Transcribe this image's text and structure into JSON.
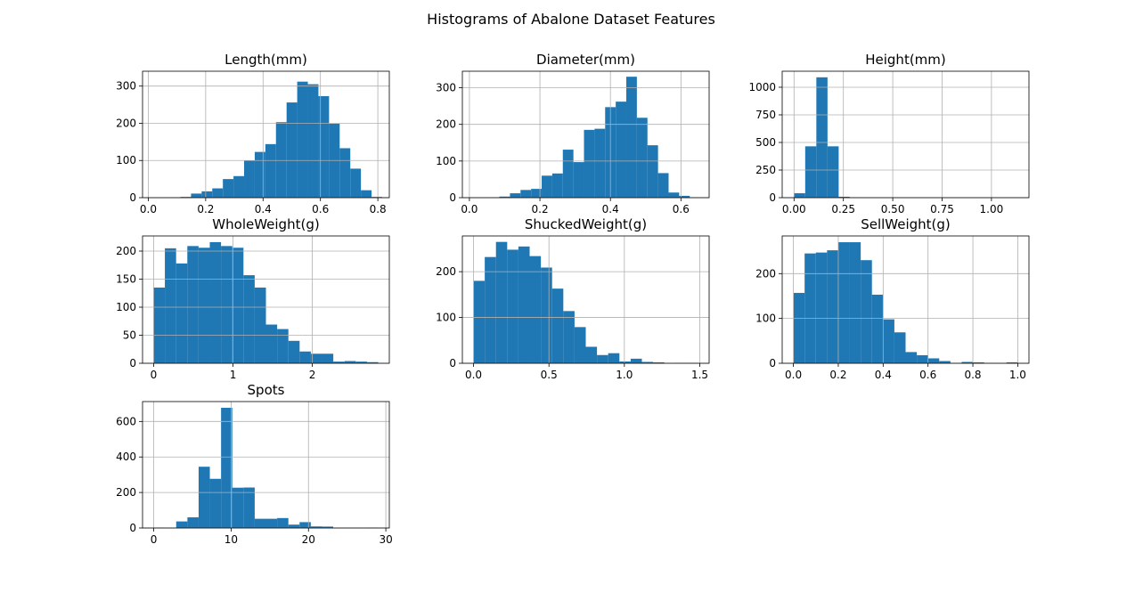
{
  "figure": {
    "title": "Histograms of Abalone Dataset Features"
  },
  "colors": {
    "bar": "#1f77b4",
    "grid": "#b0b0b0",
    "axis": "#000000"
  },
  "chart_data": [
    {
      "type": "bar",
      "title": "Length(mm)",
      "bin_edges": [
        0.075,
        0.112,
        0.149,
        0.186,
        0.223,
        0.26,
        0.297,
        0.334,
        0.371,
        0.408,
        0.445,
        0.482,
        0.519,
        0.556,
        0.593,
        0.63,
        0.667,
        0.704,
        0.741,
        0.778,
        0.815
      ],
      "values": [
        1,
        2,
        11,
        17,
        25,
        50,
        58,
        100,
        123,
        144,
        203,
        256,
        312,
        305,
        273,
        199,
        133,
        78,
        20,
        2
      ],
      "xlim": [
        -0.02,
        0.84
      ],
      "ylim": [
        0,
        340
      ],
      "xticks": [
        0.0,
        0.2,
        0.4,
        0.6,
        0.8
      ],
      "xtick_labels": [
        "0.0",
        "0.2",
        "0.4",
        "0.6",
        "0.8"
      ],
      "yticks": [
        0,
        100,
        200,
        300
      ],
      "ytick_labels": [
        "0",
        "100",
        "200",
        "300"
      ],
      "grid": true
    },
    {
      "type": "bar",
      "title": "Diameter(mm)",
      "bin_edges": [
        0.055,
        0.085,
        0.115,
        0.145,
        0.175,
        0.205,
        0.235,
        0.265,
        0.295,
        0.325,
        0.355,
        0.385,
        0.415,
        0.445,
        0.475,
        0.505,
        0.535,
        0.565,
        0.595,
        0.625,
        0.655
      ],
      "values": [
        1,
        3,
        12,
        21,
        24,
        60,
        66,
        131,
        97,
        185,
        188,
        247,
        262,
        330,
        218,
        143,
        67,
        14,
        5,
        1
      ],
      "xlim": [
        -0.02,
        0.68
      ],
      "ylim": [
        0,
        345
      ],
      "xticks": [
        0.0,
        0.2,
        0.4,
        0.6
      ],
      "xtick_labels": [
        "0.0",
        "0.2",
        "0.4",
        "0.6"
      ],
      "yticks": [
        0,
        100,
        200,
        300
      ],
      "ytick_labels": [
        "0",
        "100",
        "200",
        "300"
      ],
      "grid": true
    },
    {
      "type": "bar",
      "title": "Height(mm)",
      "bin_edges": [
        0.0,
        0.0565,
        0.113,
        0.1695,
        0.226,
        0.2825,
        0.339,
        0.3955,
        0.452,
        0.5085,
        0.565,
        0.6215,
        0.678,
        0.7345,
        0.791,
        0.8475,
        0.904,
        0.9605,
        1.017,
        1.0735,
        1.13
      ],
      "values": [
        40,
        465,
        1090,
        465,
        8,
        1,
        0,
        0,
        0,
        0,
        0,
        0,
        0,
        0,
        0,
        0,
        0,
        0,
        0,
        1
      ],
      "xlim": [
        -0.06,
        1.19
      ],
      "ylim": [
        0,
        1145
      ],
      "xticks": [
        0.0,
        0.25,
        0.5,
        0.75,
        1.0
      ],
      "xtick_labels": [
        "0.00",
        "0.25",
        "0.50",
        "0.75",
        "1.00"
      ],
      "yticks": [
        0,
        250,
        500,
        750,
        1000
      ],
      "ytick_labels": [
        "0",
        "250",
        "500",
        "750",
        "1000"
      ],
      "grid": true
    },
    {
      "type": "bar",
      "title": "WholeWeight(g)",
      "bin_edges": [
        0.0,
        0.1415,
        0.283,
        0.4245,
        0.566,
        0.7075,
        0.849,
        0.9905,
        1.132,
        1.2735,
        1.415,
        1.5565,
        1.698,
        1.8395,
        1.981,
        2.1225,
        2.264,
        2.4055,
        2.547,
        2.6885,
        2.83
      ],
      "values": [
        135,
        205,
        178,
        209,
        206,
        216,
        209,
        206,
        157,
        135,
        69,
        61,
        40,
        21,
        17,
        17,
        3,
        4,
        3,
        2
      ],
      "xlim": [
        -0.14,
        2.97
      ],
      "ylim": [
        0,
        227
      ],
      "xticks": [
        0,
        1,
        2
      ],
      "xtick_labels": [
        "0",
        "1",
        "2"
      ],
      "yticks": [
        0,
        50,
        100,
        150,
        200
      ],
      "ytick_labels": [
        "0",
        "50",
        "100",
        "150",
        "200"
      ],
      "grid": true
    },
    {
      "type": "bar",
      "title": "ShuckedWeight(g)",
      "bin_edges": [
        0.0,
        0.0744,
        0.1488,
        0.2232,
        0.2976,
        0.372,
        0.4464,
        0.5208,
        0.5952,
        0.6696,
        0.744,
        0.8184,
        0.8928,
        0.9672,
        1.0416,
        1.116,
        1.1904,
        1.2648,
        1.3392,
        1.4136,
        1.488
      ],
      "values": [
        180,
        232,
        265,
        248,
        255,
        234,
        209,
        163,
        114,
        79,
        36,
        18,
        22,
        4,
        10,
        3,
        2,
        0,
        1,
        1
      ],
      "xlim": [
        -0.074,
        1.562
      ],
      "ylim": [
        0,
        278
      ],
      "xticks": [
        0.0,
        0.5,
        1.0,
        1.5
      ],
      "xtick_labels": [
        "0.0",
        "0.5",
        "1.0",
        "1.5"
      ],
      "yticks": [
        0,
        100,
        200
      ],
      "ytick_labels": [
        "0",
        "100",
        "200"
      ],
      "grid": true
    },
    {
      "type": "bar",
      "title": "SellWeight(g)",
      "bin_edges": [
        0.0,
        0.05,
        0.1,
        0.15,
        0.2,
        0.25,
        0.3,
        0.35,
        0.4,
        0.45,
        0.5,
        0.55,
        0.6,
        0.65,
        0.7,
        0.75,
        0.8,
        0.85,
        0.9,
        0.95,
        1.0
      ],
      "values": [
        157,
        245,
        247,
        252,
        270,
        270,
        230,
        153,
        98,
        69,
        25,
        18,
        11,
        5,
        1,
        3,
        2,
        1,
        0,
        2
      ],
      "xlim": [
        -0.05,
        1.05
      ],
      "ylim": [
        0,
        284
      ],
      "xticks": [
        0.0,
        0.2,
        0.4,
        0.6,
        0.8,
        1.0
      ],
      "xtick_labels": [
        "0.0",
        "0.2",
        "0.4",
        "0.6",
        "0.8",
        "1.0"
      ],
      "yticks": [
        0,
        100,
        200
      ],
      "ytick_labels": [
        "0",
        "100",
        "200"
      ],
      "grid": true
    },
    {
      "type": "bar",
      "title": "Spots",
      "bin_edges": [
        0.0,
        1.45,
        2.9,
        4.35,
        5.8,
        7.25,
        8.7,
        10.15,
        11.6,
        13.05,
        14.5,
        15.95,
        17.4,
        18.85,
        20.3,
        21.75,
        23.2,
        24.65,
        26.1,
        27.55,
        29.0
      ],
      "values": [
        2,
        1,
        37,
        60,
        345,
        277,
        677,
        227,
        228,
        52,
        52,
        56,
        19,
        33,
        9,
        8,
        0,
        0,
        0,
        2
      ],
      "xlim": [
        -1.45,
        30.45
      ],
      "ylim": [
        0,
        712
      ],
      "xticks": [
        0,
        10,
        20,
        30
      ],
      "xtick_labels": [
        "0",
        "10",
        "20",
        "30"
      ],
      "yticks": [
        0,
        200,
        400,
        600
      ],
      "ytick_labels": [
        "0",
        "200",
        "400",
        "600"
      ],
      "grid": true
    }
  ]
}
